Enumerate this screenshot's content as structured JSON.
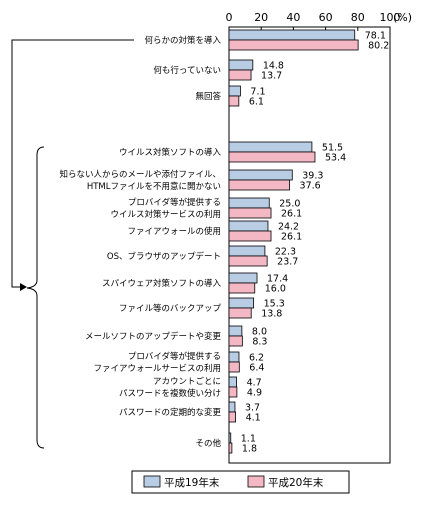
{
  "chart_data": {
    "type": "bar",
    "orientation": "horizontal",
    "unit_label": "(%)",
    "xlim": [
      0,
      100
    ],
    "x_ticks": [
      "0",
      "20",
      "40",
      "60",
      "80",
      "100"
    ],
    "grid": false,
    "legend_position": "bottom",
    "categories": [
      "何らかの対策を導入",
      "何も行っていない",
      "無回答",
      "ウイルス対策ソフトの導入",
      "知らない人からのメールや添付ファイル、HTMLファイルを不用意に開かない",
      "プロバイダ等が提供するウイルス対策サービスの利用",
      "ファイアウォールの使用",
      "OS、ブラウザのアップデート",
      "スパイウェア対策ソフトの導入",
      "ファイル等のバックアップ",
      "メールソフトのアップデートや変更",
      "プロバイダ等が提供するファイアウォールサービスの利用",
      "アカウントごとにパスワードを複数使い分け",
      "パスワードの定期的な変更",
      "その他"
    ],
    "category_lines": [
      [
        "何らかの対策を導入"
      ],
      [
        "何も行っていない"
      ],
      [
        "無回答"
      ],
      [
        "ウイルス対策ソフトの導入"
      ],
      [
        "知らない人からのメールや添付ファイル、",
        "HTMLファイルを不用意に開かない"
      ],
      [
        "プロバイダ等が提供する",
        "ウイルス対策サービスの利用"
      ],
      [
        "ファイアウォールの使用"
      ],
      [
        "OS、ブラウザのアップデート"
      ],
      [
        "スパイウェア対策ソフトの導入"
      ],
      [
        "ファイル等のバックアップ"
      ],
      [
        "メールソフトのアップデートや変更"
      ],
      [
        "プロバイダ等が提供する",
        "ファイアウォールサービスの利用"
      ],
      [
        "アカウントごとに",
        "パスワードを複数使い分け"
      ],
      [
        "パスワードの定期的な変更"
      ],
      [
        "その他"
      ]
    ],
    "series": [
      {
        "name": "平成19年末",
        "color": "#b8cce4",
        "values": [
          78.1,
          14.8,
          7.1,
          51.5,
          39.3,
          25.0,
          24.2,
          22.3,
          17.4,
          15.3,
          8.0,
          6.2,
          4.7,
          3.7,
          1.1
        ],
        "labels": [
          "78.1",
          "14.8",
          "7.1",
          "51.5",
          "39.3",
          "25.0",
          "24.2",
          "22.3",
          "17.4",
          "15.3",
          "8.0",
          "6.2",
          "4.7",
          "3.7",
          "1.1"
        ]
      },
      {
        "name": "平成20年末",
        "color": "#f4b8c4",
        "values": [
          80.2,
          13.7,
          6.1,
          53.4,
          37.6,
          26.1,
          26.1,
          23.7,
          16.0,
          13.8,
          8.3,
          6.4,
          4.9,
          4.1,
          1.8
        ],
        "labels": [
          "80.2",
          "13.7",
          "6.1",
          "53.4",
          "37.6",
          "26.1",
          "26.1",
          "23.7",
          "16.0",
          "13.8",
          "8.3",
          "6.4",
          "4.9",
          "4.1",
          "1.8"
        ]
      }
    ]
  }
}
